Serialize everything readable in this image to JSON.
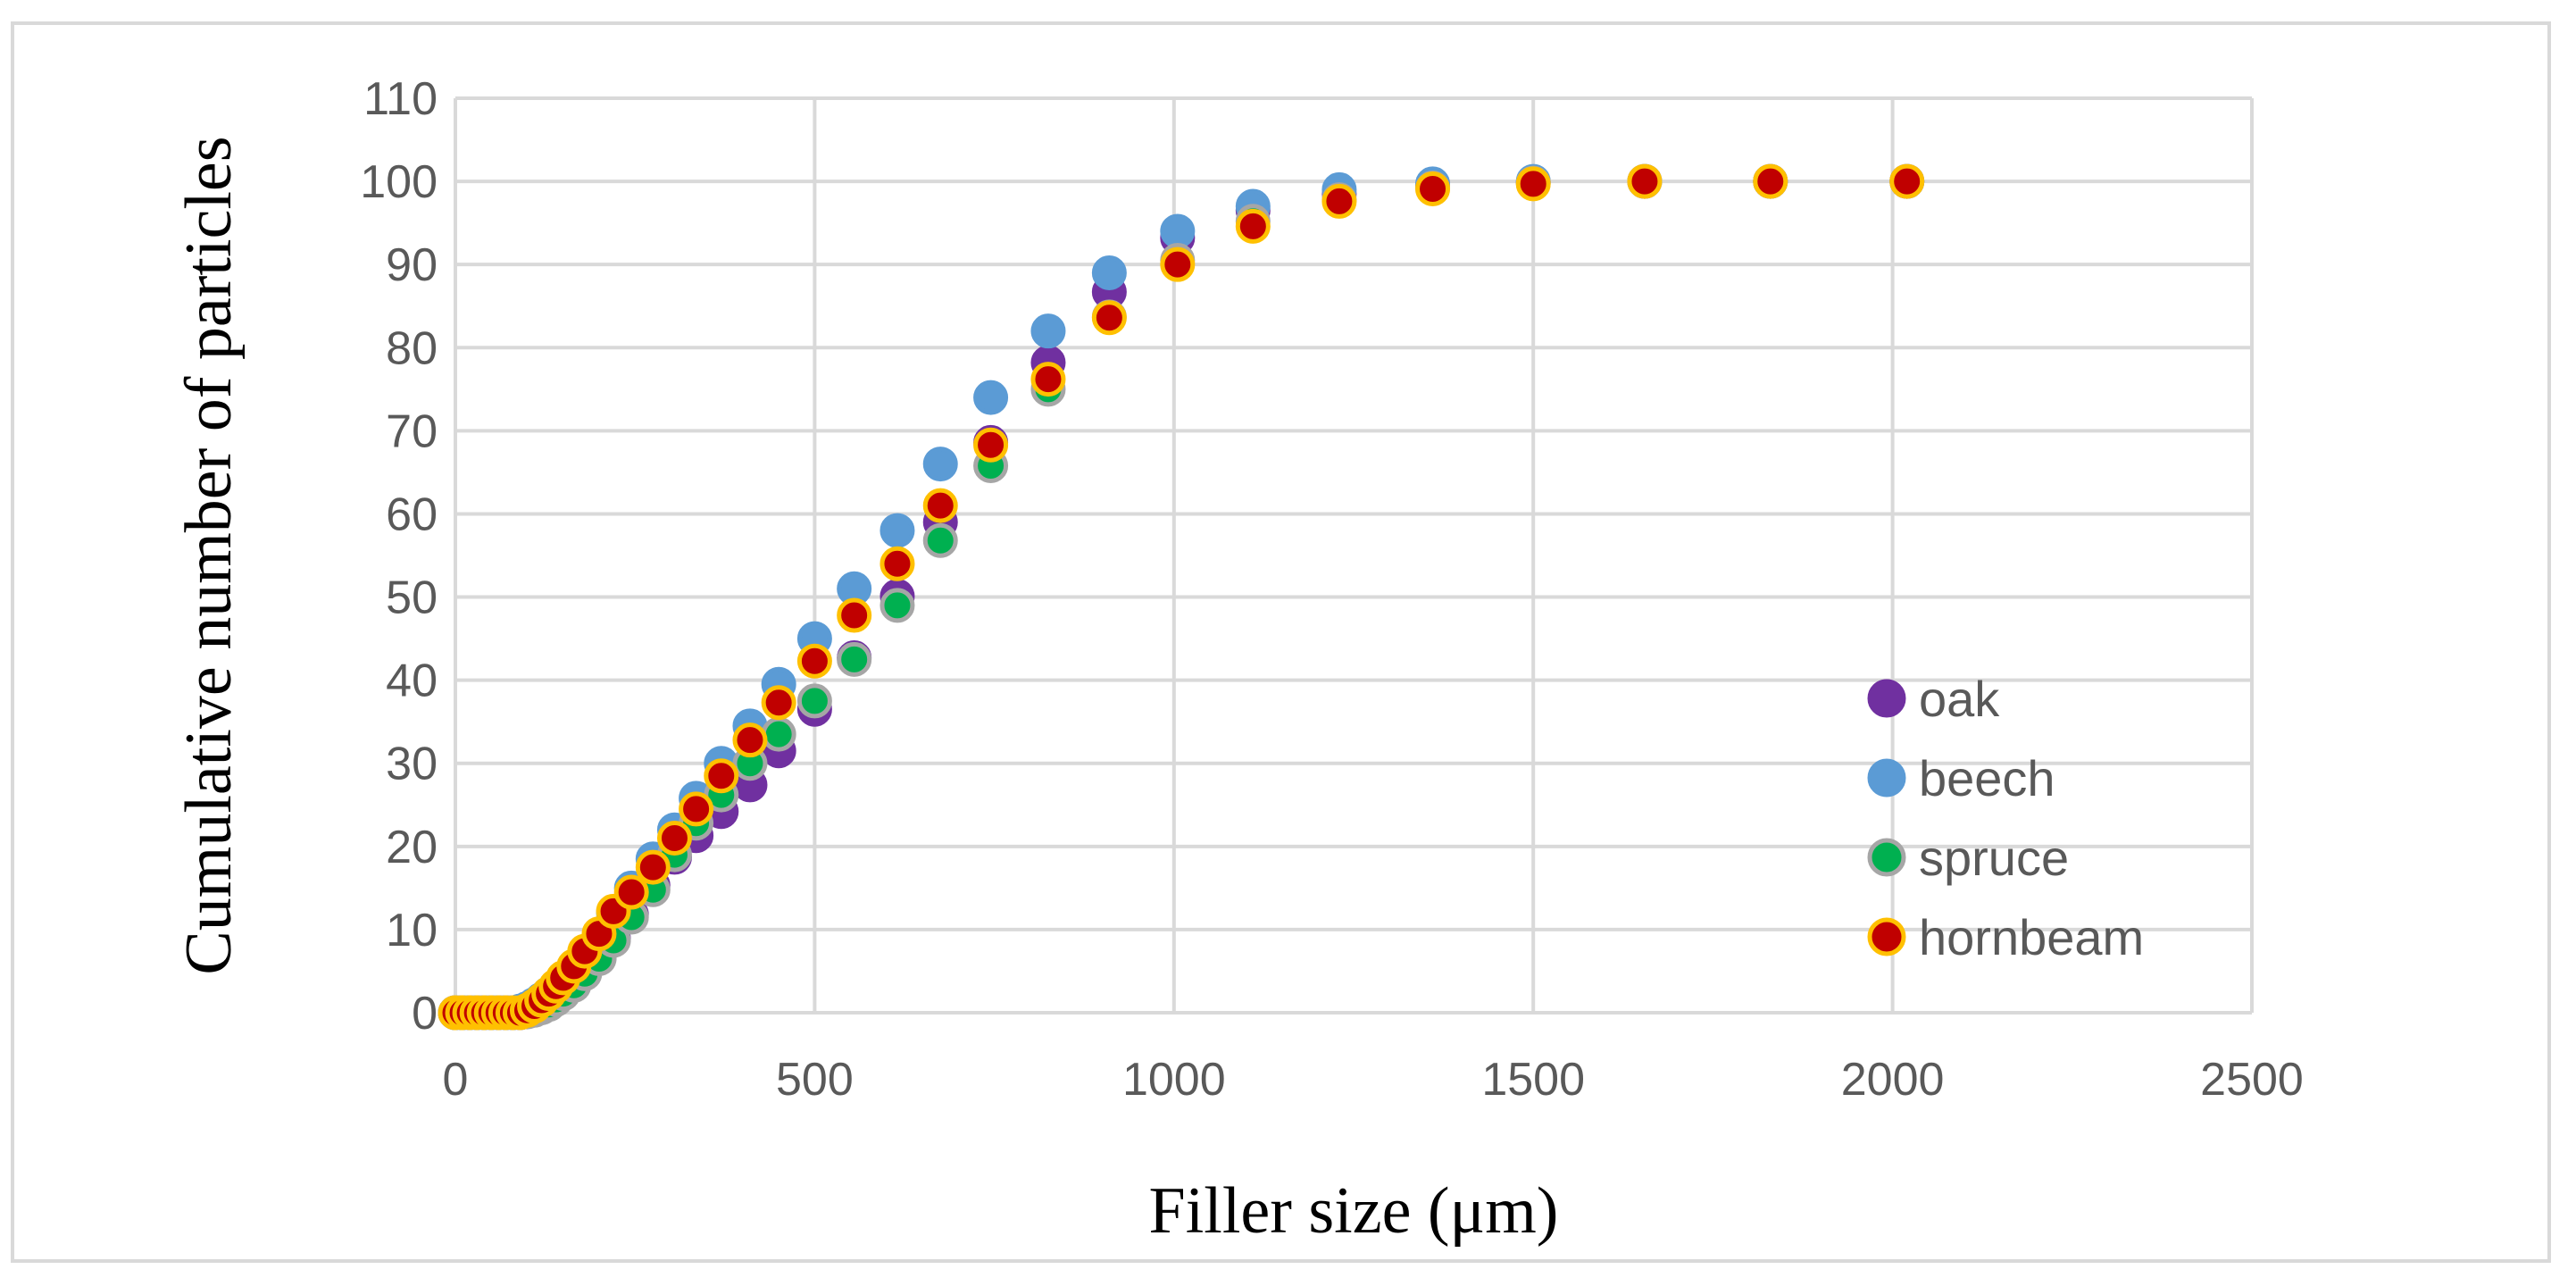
{
  "chart_data": {
    "type": "scatter",
    "title": "",
    "xlabel": "Filler size (μm)",
    "ylabel": "Cumulative number of particles",
    "xlim": [
      0,
      2500
    ],
    "ylim": [
      0,
      110
    ],
    "xticks": [
      0,
      500,
      1000,
      1500,
      2000,
      2500
    ],
    "yticks": [
      0,
      10,
      20,
      30,
      40,
      50,
      60,
      70,
      80,
      90,
      100,
      110
    ],
    "grid": true,
    "legend_position": "right",
    "series": [
      {
        "name": "oak",
        "fill": "#7030a0",
        "stroke": "#7030a0",
        "x": [
          0,
          10,
          20,
          30,
          40,
          50,
          60,
          70,
          80,
          90,
          100,
          110,
          120,
          130,
          140,
          150,
          165,
          180,
          200,
          220,
          245,
          275,
          305,
          335,
          370,
          410,
          450,
          500,
          555,
          615,
          675,
          745,
          825,
          910,
          1005,
          1110,
          1230,
          1360,
          1500,
          1655,
          1830,
          2020
        ],
        "y": [
          0,
          0,
          0,
          0,
          0,
          0,
          0,
          0,
          0,
          0,
          0.2,
          0.5,
          0.8,
          1.3,
          1.9,
          2.6,
          3.6,
          4.9,
          6.6,
          8.9,
          11.8,
          15.3,
          18.7,
          21.3,
          24.2,
          27.4,
          31.5,
          36.5,
          42.7,
          50.1,
          59.0,
          68.6,
          78.2,
          86.7,
          93.2,
          96.5,
          98.5,
          99.5,
          99.9,
          100,
          100,
          100
        ]
      },
      {
        "name": "beech",
        "fill": "#5b9bd5",
        "stroke": "#5b9bd5",
        "x": [
          0,
          10,
          20,
          30,
          40,
          50,
          60,
          70,
          80,
          90,
          100,
          110,
          120,
          130,
          140,
          150,
          165,
          180,
          200,
          220,
          245,
          275,
          305,
          335,
          370,
          410,
          450,
          500,
          555,
          615,
          675,
          745,
          825,
          910,
          1005,
          1110,
          1230,
          1360,
          1500,
          1655,
          1830,
          2020
        ],
        "y": [
          0,
          0,
          0,
          0,
          0,
          0,
          0,
          0,
          0,
          0.2,
          0.5,
          1.0,
          1.6,
          2.3,
          3.1,
          4.0,
          5.3,
          6.9,
          9.2,
          12.0,
          15.0,
          18.5,
          22.0,
          25.8,
          30.0,
          34.5,
          39.5,
          45.0,
          51.0,
          58.0,
          66.0,
          74.0,
          82.0,
          89.0,
          94.0,
          97.0,
          99.0,
          99.7,
          100,
          100,
          100,
          100
        ]
      },
      {
        "name": "spruce",
        "fill": "#00b050",
        "stroke": "#a6a6a6",
        "x": [
          0,
          10,
          20,
          30,
          40,
          50,
          60,
          70,
          80,
          90,
          100,
          110,
          120,
          130,
          140,
          150,
          165,
          180,
          200,
          220,
          245,
          275,
          305,
          335,
          370,
          410,
          450,
          500,
          555,
          615,
          675,
          745,
          825,
          910,
          1005,
          1110,
          1230,
          1360,
          1500,
          1655,
          1830,
          2020
        ],
        "y": [
          0,
          0,
          0,
          0,
          0,
          0,
          0,
          0,
          0,
          0,
          0.1,
          0.3,
          0.6,
          1.0,
          1.6,
          2.3,
          3.3,
          4.7,
          6.5,
          8.7,
          11.5,
          14.8,
          19.0,
          22.8,
          26.2,
          30.0,
          33.5,
          37.5,
          42.5,
          49.0,
          56.8,
          65.8,
          75.0,
          83.7,
          90.5,
          95.2,
          97.8,
          99.2,
          99.8,
          100,
          100,
          100
        ]
      },
      {
        "name": "hornbeam",
        "fill": "#c00000",
        "stroke": "#ffc000",
        "x": [
          0,
          10,
          20,
          30,
          40,
          50,
          60,
          70,
          80,
          90,
          100,
          110,
          120,
          130,
          140,
          150,
          165,
          180,
          200,
          220,
          245,
          275,
          305,
          335,
          370,
          410,
          450,
          500,
          555,
          615,
          675,
          745,
          825,
          910,
          1005,
          1110,
          1230,
          1360,
          1500,
          1655,
          1830,
          2020
        ],
        "y": [
          0,
          0,
          0,
          0,
          0,
          0,
          0,
          0,
          0,
          0,
          0.3,
          0.8,
          1.5,
          2.3,
          3.2,
          4.2,
          5.6,
          7.4,
          9.5,
          12.2,
          14.5,
          17.5,
          21.0,
          24.5,
          28.5,
          32.8,
          37.3,
          42.3,
          47.8,
          54.0,
          61.0,
          68.3,
          76.2,
          83.6,
          90.0,
          94.6,
          97.6,
          99.1,
          99.7,
          100,
          100,
          100
        ]
      }
    ]
  }
}
